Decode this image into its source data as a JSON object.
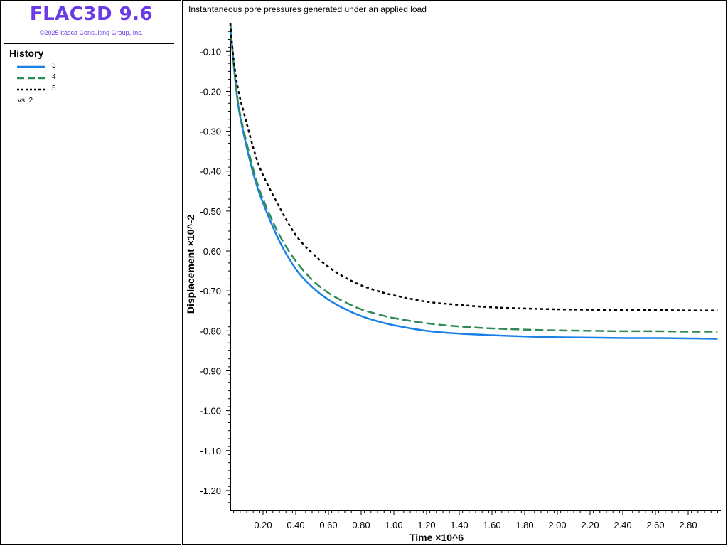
{
  "app": {
    "title": "FLAC3D 9.6",
    "copyright": "©2025 Itasca Consulting Group, Inc."
  },
  "legend": {
    "heading": "History",
    "items": [
      {
        "label": "3",
        "color": "#1a7fe6",
        "style": "solid"
      },
      {
        "label": "4",
        "color": "#2e8b57",
        "style": "dashed"
      },
      {
        "label": "5",
        "color": "#000000",
        "style": "dotted"
      }
    ],
    "vs_label": "vs. 2"
  },
  "chart_data": {
    "type": "line",
    "title": "Instantaneous pore pressures generated under an applied load",
    "xlabel": "Time ×10^6",
    "ylabel": "Displacement ×10^-2",
    "xlim": [
      0.0,
      3.0
    ],
    "ylim": [
      -1.25,
      -0.03
    ],
    "x_ticks": [
      0.2,
      0.4,
      0.6,
      0.8,
      1.0,
      1.2,
      1.4,
      1.6,
      1.8,
      2.0,
      2.2,
      2.4,
      2.6,
      2.8
    ],
    "y_ticks": [
      -0.1,
      -0.2,
      -0.3,
      -0.4,
      -0.5,
      -0.6,
      -0.7,
      -0.8,
      -0.9,
      -1.0,
      -1.1,
      -1.2
    ],
    "x": [
      0.0,
      0.02,
      0.05,
      0.1,
      0.15,
      0.2,
      0.3,
      0.4,
      0.5,
      0.6,
      0.7,
      0.8,
      0.9,
      1.0,
      1.2,
      1.4,
      1.6,
      1.8,
      2.0,
      2.2,
      2.4,
      2.6,
      2.8,
      2.98
    ],
    "series": [
      {
        "name": "3",
        "color": "#1a7fe6",
        "style": "solid",
        "values": [
          -0.03,
          -0.13,
          -0.24,
          -0.34,
          -0.42,
          -0.48,
          -0.575,
          -0.645,
          -0.69,
          -0.722,
          -0.745,
          -0.763,
          -0.776,
          -0.786,
          -0.8,
          -0.807,
          -0.811,
          -0.814,
          -0.816,
          -0.817,
          -0.818,
          -0.818,
          -0.819,
          -0.82
        ]
      },
      {
        "name": "4",
        "color": "#2e8b57",
        "style": "dashed",
        "values": [
          -0.03,
          -0.13,
          -0.235,
          -0.33,
          -0.41,
          -0.47,
          -0.56,
          -0.625,
          -0.672,
          -0.705,
          -0.728,
          -0.746,
          -0.758,
          -0.768,
          -0.781,
          -0.789,
          -0.794,
          -0.797,
          -0.799,
          -0.8,
          -0.801,
          -0.801,
          -0.802,
          -0.802
        ]
      },
      {
        "name": "5",
        "color": "#000000",
        "style": "dotted",
        "values": [
          -0.03,
          -0.12,
          -0.2,
          -0.28,
          -0.355,
          -0.41,
          -0.49,
          -0.56,
          -0.605,
          -0.64,
          -0.666,
          -0.686,
          -0.7,
          -0.711,
          -0.727,
          -0.735,
          -0.741,
          -0.744,
          -0.746,
          -0.747,
          -0.748,
          -0.748,
          -0.749,
          -0.749
        ]
      }
    ],
    "grid": false,
    "legend_position": "left-panel"
  }
}
